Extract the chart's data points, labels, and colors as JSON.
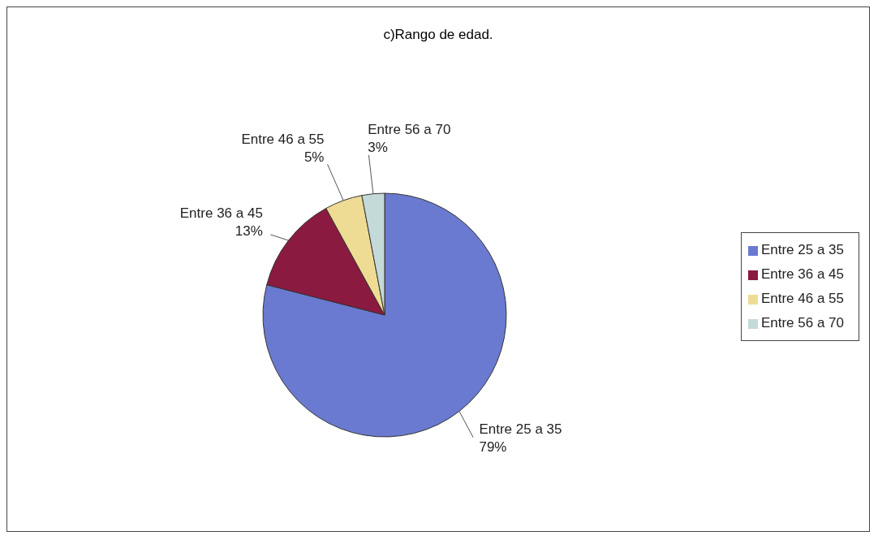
{
  "chart_data": {
    "type": "pie",
    "title": "c)Rango de edad.",
    "categories": [
      "Entre 25 a 35",
      "Entre 36 a 45",
      "Entre 46 a 55",
      "Entre 56 a 70"
    ],
    "values": [
      79,
      13,
      5,
      3
    ],
    "colors": [
      "#6a7ad0",
      "#8a1a40",
      "#eedc94",
      "#c4dad8"
    ],
    "value_labels": [
      "79%",
      "13%",
      "5%",
      "3%"
    ],
    "legend": "right"
  }
}
